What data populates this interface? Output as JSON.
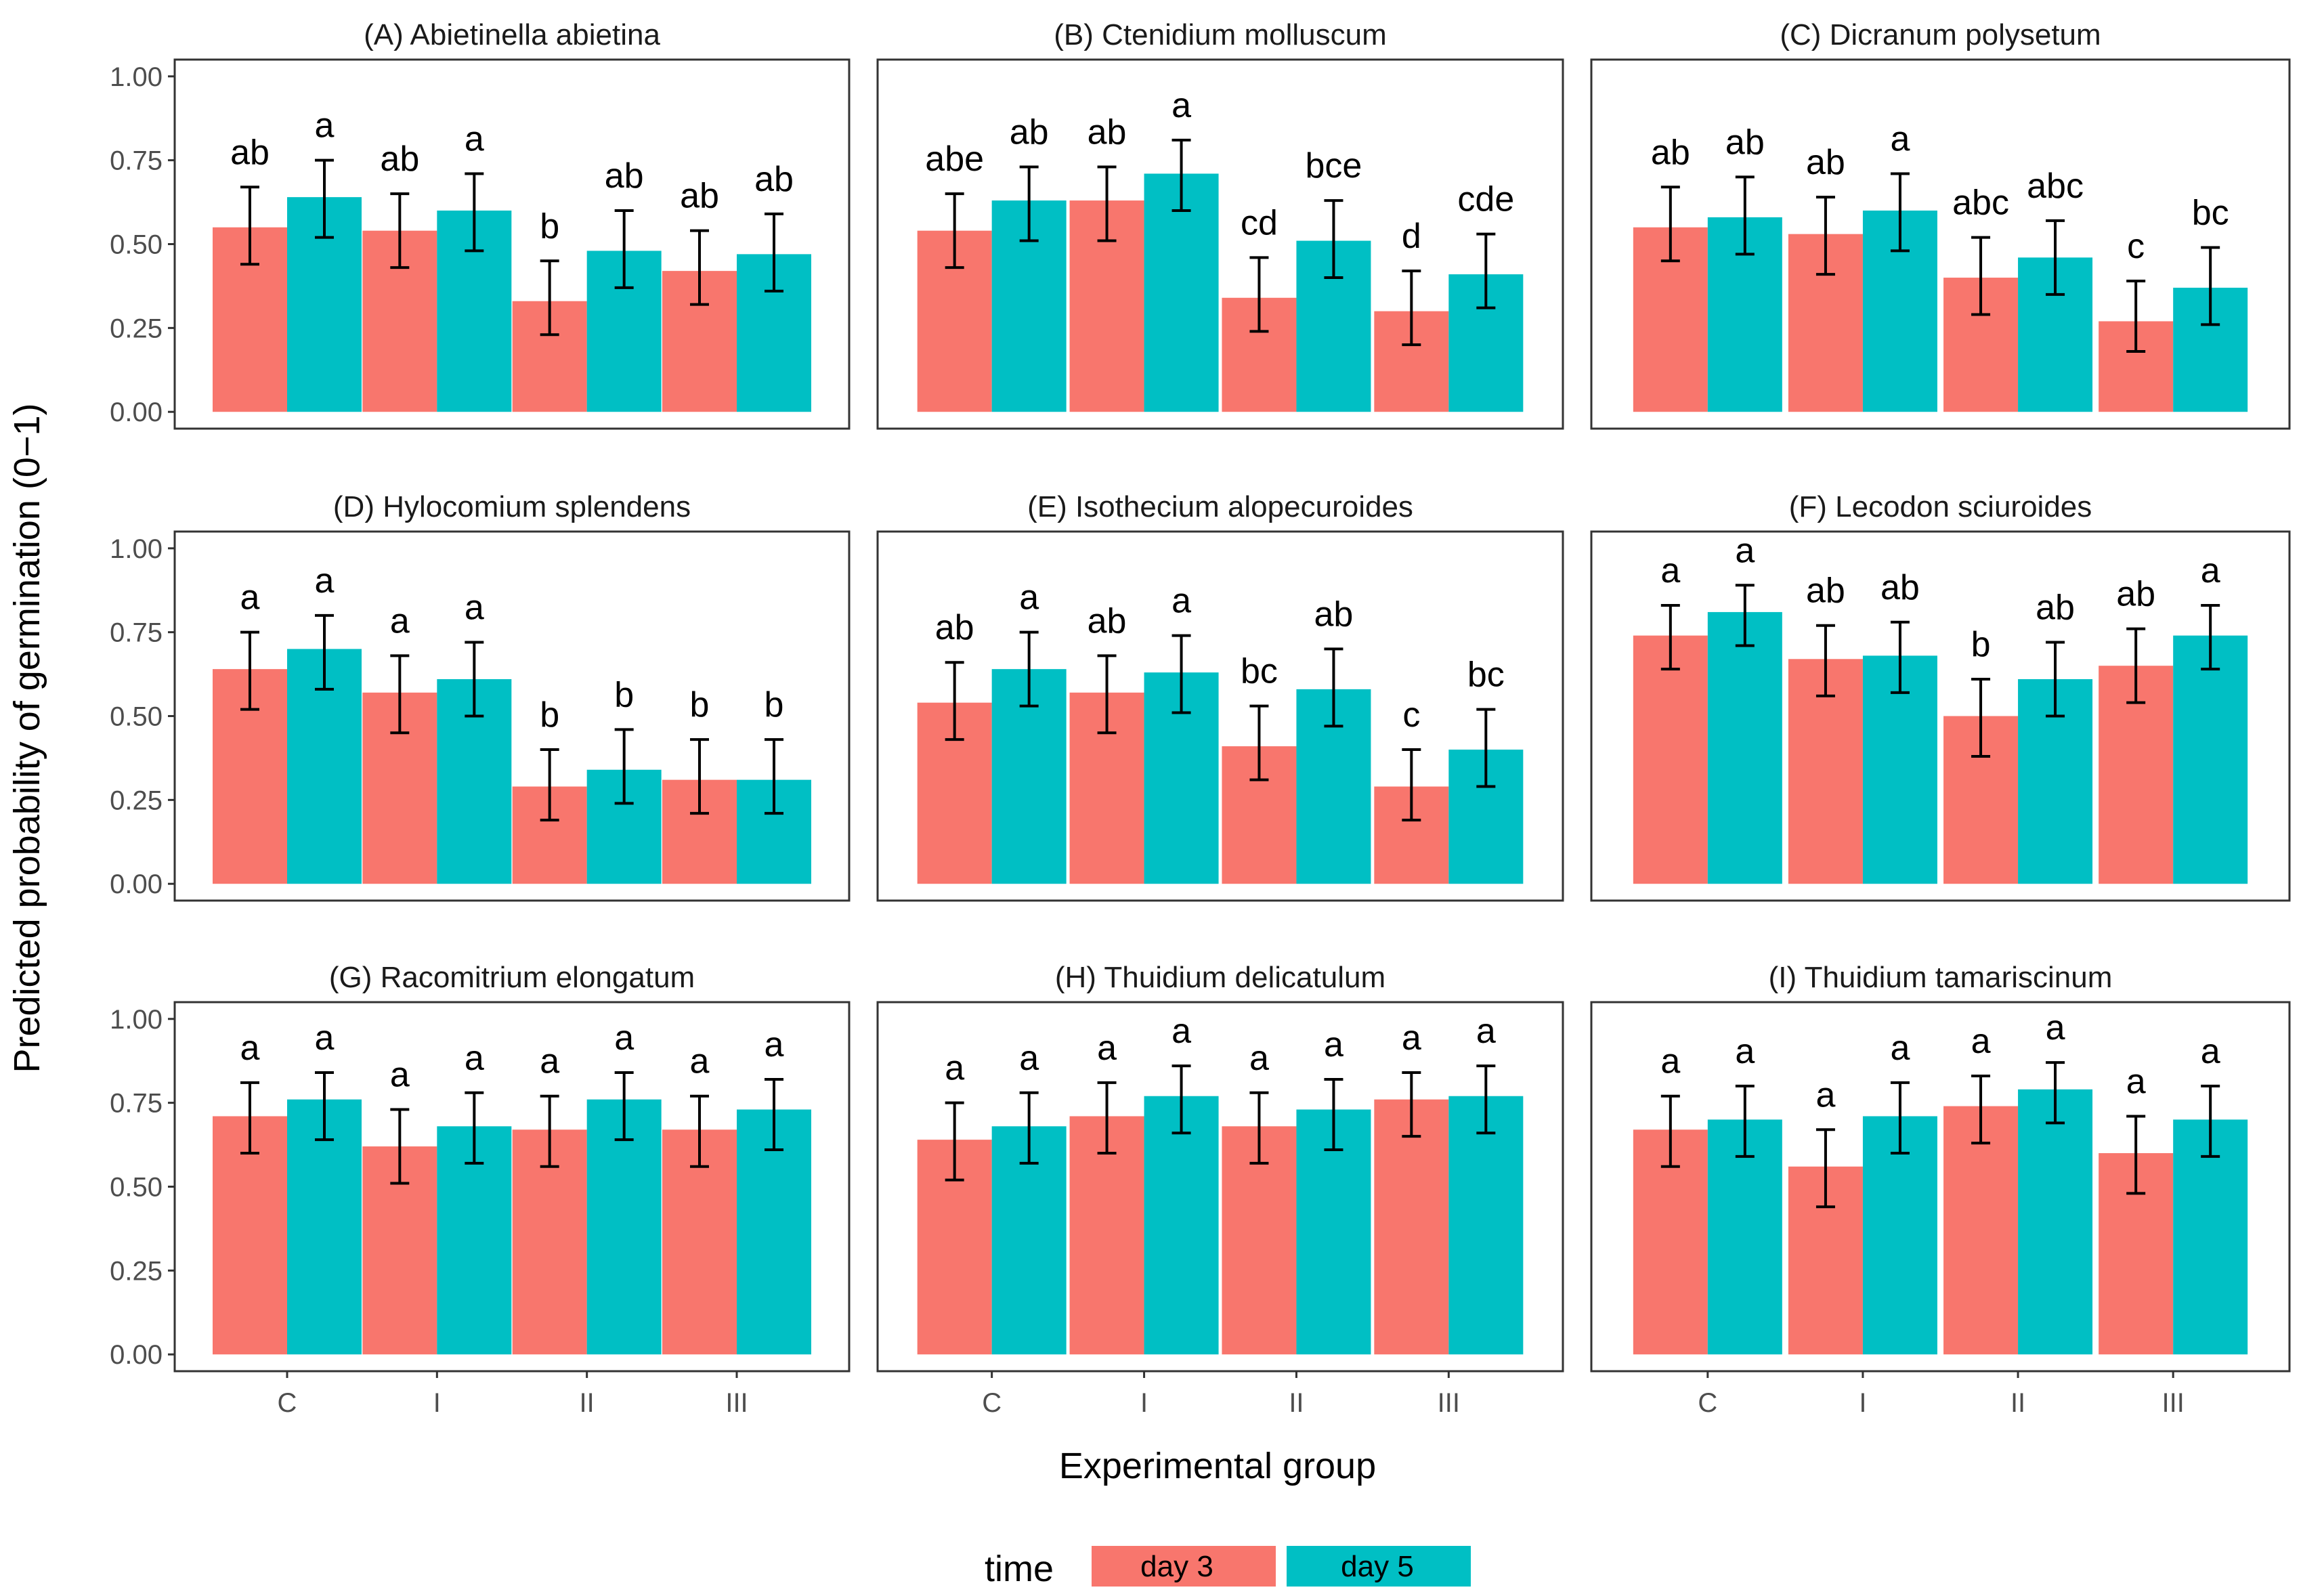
{
  "chart_data": {
    "type": "bar",
    "layout": "3x3 facet grid",
    "xlabel": "Experimental group",
    "ylabel": "Predicted probability of germination (0−1)",
    "ylim": [
      0,
      1
    ],
    "y_ticks": [
      "0.00",
      "0.25",
      "0.50",
      "0.75",
      "1.00"
    ],
    "y_tick_values": [
      0,
      0.25,
      0.5,
      0.75,
      1.0
    ],
    "categories": [
      "C",
      "I",
      "II",
      "III"
    ],
    "legend": {
      "title": "time",
      "position": "bottom",
      "items": [
        {
          "name": "day 3",
          "color": "#F8766D"
        },
        {
          "name": "day 5",
          "color": "#00BFC4"
        }
      ]
    },
    "panels": [
      {
        "title": "(A) Abietinella abietina",
        "series": [
          {
            "name": "day 3",
            "values": [
              0.55,
              0.54,
              0.33,
              0.42
            ],
            "lower": [
              0.44,
              0.43,
              0.23,
              0.32
            ],
            "upper": [
              0.67,
              0.65,
              0.45,
              0.54
            ],
            "labels": [
              "ab",
              "ab",
              "b",
              "ab"
            ]
          },
          {
            "name": "day 5",
            "values": [
              0.64,
              0.6,
              0.48,
              0.47
            ],
            "lower": [
              0.52,
              0.48,
              0.37,
              0.36
            ],
            "upper": [
              0.75,
              0.71,
              0.6,
              0.59
            ],
            "labels": [
              "a",
              "a",
              "ab",
              "ab"
            ]
          }
        ]
      },
      {
        "title": "(B) Ctenidium molluscum",
        "series": [
          {
            "name": "day 3",
            "values": [
              0.54,
              0.63,
              0.34,
              0.3
            ],
            "lower": [
              0.43,
              0.51,
              0.24,
              0.2
            ],
            "upper": [
              0.65,
              0.73,
              0.46,
              0.42
            ],
            "labels": [
              "abe",
              "ab",
              "cd",
              "d"
            ]
          },
          {
            "name": "day 5",
            "values": [
              0.63,
              0.71,
              0.51,
              0.41
            ],
            "lower": [
              0.51,
              0.6,
              0.4,
              0.31
            ],
            "upper": [
              0.73,
              0.81,
              0.63,
              0.53
            ],
            "labels": [
              "ab",
              "a",
              "bce",
              "cde"
            ]
          }
        ]
      },
      {
        "title": "(C) Dicranum polysetum",
        "series": [
          {
            "name": "day 3",
            "values": [
              0.55,
              0.53,
              0.4,
              0.27
            ],
            "lower": [
              0.45,
              0.41,
              0.29,
              0.18
            ],
            "upper": [
              0.67,
              0.64,
              0.52,
              0.39
            ],
            "labels": [
              "ab",
              "ab",
              "abc",
              "c"
            ]
          },
          {
            "name": "day 5",
            "values": [
              0.58,
              0.6,
              0.46,
              0.37
            ],
            "lower": [
              0.47,
              0.48,
              0.35,
              0.26
            ],
            "upper": [
              0.7,
              0.71,
              0.57,
              0.49
            ],
            "labels": [
              "ab",
              "a",
              "abc",
              "bc"
            ]
          }
        ]
      },
      {
        "title": "(D) Hylocomium splendens",
        "series": [
          {
            "name": "day 3",
            "values": [
              0.64,
              0.57,
              0.29,
              0.31
            ],
            "lower": [
              0.52,
              0.45,
              0.19,
              0.21
            ],
            "upper": [
              0.75,
              0.68,
              0.4,
              0.43
            ],
            "labels": [
              "a",
              "a",
              "b",
              "b"
            ]
          },
          {
            "name": "day 5",
            "values": [
              0.7,
              0.61,
              0.34,
              0.31
            ],
            "lower": [
              0.58,
              0.5,
              0.24,
              0.21
            ],
            "upper": [
              0.8,
              0.72,
              0.46,
              0.43
            ],
            "labels": [
              "a",
              "a",
              "b",
              "b"
            ]
          }
        ]
      },
      {
        "title": "(E) Isothecium alopecuroides",
        "series": [
          {
            "name": "day 3",
            "values": [
              0.54,
              0.57,
              0.41,
              0.29
            ],
            "lower": [
              0.43,
              0.45,
              0.31,
              0.19
            ],
            "upper": [
              0.66,
              0.68,
              0.53,
              0.4
            ],
            "labels": [
              "ab",
              "ab",
              "bc",
              "c"
            ]
          },
          {
            "name": "day 5",
            "values": [
              0.64,
              0.63,
              0.58,
              0.4
            ],
            "lower": [
              0.53,
              0.51,
              0.47,
              0.29
            ],
            "upper": [
              0.75,
              0.74,
              0.7,
              0.52
            ],
            "labels": [
              "a",
              "a",
              "ab",
              "bc"
            ]
          }
        ]
      },
      {
        "title": "(F) Lecodon sciuroides",
        "series": [
          {
            "name": "day 3",
            "values": [
              0.74,
              0.67,
              0.5,
              0.65
            ],
            "lower": [
              0.64,
              0.56,
              0.38,
              0.54
            ],
            "upper": [
              0.83,
              0.77,
              0.61,
              0.76
            ],
            "labels": [
              "a",
              "ab",
              "b",
              "ab"
            ]
          },
          {
            "name": "day 5",
            "values": [
              0.81,
              0.68,
              0.61,
              0.74
            ],
            "lower": [
              0.71,
              0.57,
              0.5,
              0.64
            ],
            "upper": [
              0.89,
              0.78,
              0.72,
              0.83
            ],
            "labels": [
              "a",
              "ab",
              "ab",
              "a"
            ]
          }
        ]
      },
      {
        "title": "(G) Racomitrium elongatum",
        "series": [
          {
            "name": "day 3",
            "values": [
              0.71,
              0.62,
              0.67,
              0.67
            ],
            "lower": [
              0.6,
              0.51,
              0.56,
              0.56
            ],
            "upper": [
              0.81,
              0.73,
              0.77,
              0.77
            ],
            "labels": [
              "a",
              "a",
              "a",
              "a"
            ]
          },
          {
            "name": "day 5",
            "values": [
              0.76,
              0.68,
              0.76,
              0.73
            ],
            "lower": [
              0.64,
              0.57,
              0.64,
              0.61
            ],
            "upper": [
              0.84,
              0.78,
              0.84,
              0.82
            ],
            "labels": [
              "a",
              "a",
              "a",
              "a"
            ]
          }
        ]
      },
      {
        "title": "(H) Thuidium delicatulum",
        "series": [
          {
            "name": "day 3",
            "values": [
              0.64,
              0.71,
              0.68,
              0.76
            ],
            "lower": [
              0.52,
              0.6,
              0.57,
              0.65
            ],
            "upper": [
              0.75,
              0.81,
              0.78,
              0.84
            ],
            "labels": [
              "a",
              "a",
              "a",
              "a"
            ]
          },
          {
            "name": "day 5",
            "values": [
              0.68,
              0.77,
              0.73,
              0.77
            ],
            "lower": [
              0.57,
              0.66,
              0.61,
              0.66
            ],
            "upper": [
              0.78,
              0.86,
              0.82,
              0.86
            ],
            "labels": [
              "a",
              "a",
              "a",
              "a"
            ]
          }
        ]
      },
      {
        "title": "(I) Thuidium tamariscinum",
        "series": [
          {
            "name": "day 3",
            "values": [
              0.67,
              0.56,
              0.74,
              0.6
            ],
            "lower": [
              0.56,
              0.44,
              0.63,
              0.48
            ],
            "upper": [
              0.77,
              0.67,
              0.83,
              0.71
            ],
            "labels": [
              "a",
              "a",
              "a",
              "a"
            ]
          },
          {
            "name": "day 5",
            "values": [
              0.7,
              0.71,
              0.79,
              0.7
            ],
            "lower": [
              0.59,
              0.6,
              0.69,
              0.59
            ],
            "upper": [
              0.8,
              0.81,
              0.87,
              0.8
            ],
            "labels": [
              "a",
              "a",
              "a",
              "a"
            ]
          }
        ]
      }
    ]
  }
}
